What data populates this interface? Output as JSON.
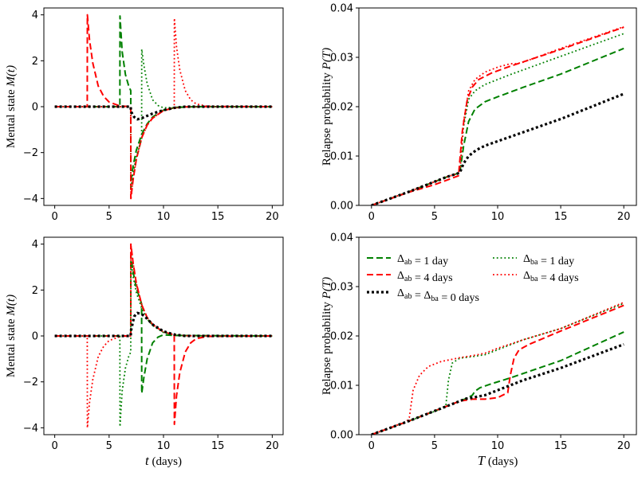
{
  "chart_data": [
    {
      "type": "line",
      "ylabel": "Mental state M(t)",
      "xlabel": "",
      "xlim": [
        -1,
        21
      ],
      "ylim": [
        -4.3,
        4.3
      ],
      "xticks": [
        0,
        5,
        10,
        15,
        20
      ],
      "yticks": [
        -4,
        -2,
        0,
        2,
        4
      ],
      "xtick_labels": [
        "0",
        "5",
        "10",
        "15",
        "20"
      ],
      "ytick_labels": [
        "−4",
        "−2",
        "0",
        "2",
        "4"
      ],
      "series": [
        {
          "color": "#008000",
          "dash": "dashed",
          "x": [
            0,
            5.99,
            6.0,
            6.2,
            6.5,
            6.8,
            6.99,
            7.0,
            7.2,
            7.5,
            8,
            8.5,
            9,
            10,
            11,
            12,
            14,
            20
          ],
          "y": [
            0,
            0,
            3.95,
            2.4,
            1.4,
            0.9,
            0.7,
            -3.3,
            -2.6,
            -1.9,
            -1.2,
            -0.75,
            -0.45,
            -0.15,
            -0.05,
            -0.01,
            0,
            0
          ]
        },
        {
          "color": "#ff0000",
          "dash": "dashed",
          "x": [
            0,
            2.99,
            3.0,
            3.2,
            3.5,
            4,
            4.5,
            5,
            6,
            6.99,
            7.0,
            7.2,
            7.5,
            8,
            8.5,
            9,
            10,
            11,
            12,
            14,
            20
          ],
          "y": [
            0,
            0,
            4.0,
            2.9,
            1.9,
            0.9,
            0.45,
            0.2,
            0.03,
            0,
            -4.0,
            -3.2,
            -2.3,
            -1.35,
            -0.8,
            -0.5,
            -0.17,
            -0.05,
            -0.01,
            0,
            0
          ]
        },
        {
          "color": "#008000",
          "dash": "dotted",
          "x": [
            0,
            6.99,
            7.0,
            7.2,
            7.5,
            7.99,
            8.0,
            8.2,
            8.5,
            9,
            9.5,
            10,
            11,
            12,
            20
          ],
          "y": [
            0,
            0,
            -3.6,
            -2.9,
            -2.2,
            -1.4,
            2.5,
            1.8,
            1.0,
            0.3,
            0.05,
            -0.05,
            -0.03,
            0,
            0
          ]
        },
        {
          "color": "#ff0000",
          "dash": "dotted",
          "x": [
            0,
            6.99,
            7.0,
            7.2,
            7.5,
            8,
            8.5,
            9,
            10,
            10.99,
            11.0,
            11.2,
            11.5,
            12,
            12.5,
            13,
            14,
            20
          ],
          "y": [
            0,
            0,
            -4.0,
            -3.2,
            -2.3,
            -1.35,
            -0.8,
            -0.5,
            -0.17,
            -0.05,
            3.85,
            2.6,
            1.6,
            0.7,
            0.3,
            0.12,
            0.02,
            0
          ]
        },
        {
          "color": "#000000",
          "dash": "bold-dotted",
          "x": [
            0,
            6.99,
            7.0,
            7.3,
            7.6,
            8,
            8.5,
            9,
            10,
            11,
            12,
            20
          ],
          "y": [
            0,
            0,
            -0.2,
            -0.45,
            -0.55,
            -0.5,
            -0.4,
            -0.3,
            -0.15,
            -0.05,
            0,
            0
          ]
        }
      ]
    },
    {
      "type": "line",
      "ylabel": "Relapse probability P(T)",
      "xlabel": "",
      "xlim": [
        -1,
        21
      ],
      "ylim": [
        0,
        0.04
      ],
      "xticks": [
        0,
        5,
        10,
        15,
        20
      ],
      "yticks": [
        0,
        0.01,
        0.02,
        0.03,
        0.04
      ],
      "xtick_labels": [
        "0",
        "5",
        "10",
        "15",
        "20"
      ],
      "ytick_labels": [
        "0.00",
        "0.01",
        "0.02",
        "0.03",
        "0.04"
      ],
      "series": [
        {
          "color": "#008000",
          "dash": "dashed",
          "x": [
            0,
            3,
            6,
            7,
            7.3,
            7.7,
            8.2,
            9,
            10,
            12,
            15,
            20
          ],
          "y": [
            0,
            0.0028,
            0.0058,
            0.0066,
            0.012,
            0.017,
            0.0195,
            0.021,
            0.022,
            0.0239,
            0.0266,
            0.0318
          ]
        },
        {
          "color": "#ff0000",
          "dash": "dashed",
          "x": [
            0,
            3,
            5,
            6.9,
            7.2,
            7.6,
            8.0,
            8.5,
            9.5,
            11,
            15,
            20
          ],
          "y": [
            0,
            0.0027,
            0.0042,
            0.006,
            0.015,
            0.0215,
            0.024,
            0.0255,
            0.0268,
            0.0282,
            0.0316,
            0.0361
          ]
        },
        {
          "color": "#008000",
          "dash": "dotted",
          "x": [
            0,
            3,
            6,
            7,
            7.3,
            7.7,
            8.2,
            9,
            11,
            15,
            20
          ],
          "y": [
            0,
            0.0028,
            0.0058,
            0.0066,
            0.016,
            0.0215,
            0.0232,
            0.0245,
            0.0265,
            0.0302,
            0.0348
          ]
        },
        {
          "color": "#ff0000",
          "dash": "dotted",
          "x": [
            0,
            3,
            6,
            7,
            7.3,
            7.7,
            8.2,
            9,
            10,
            11,
            11.5,
            12,
            15,
            20
          ],
          "y": [
            0,
            0.0028,
            0.0058,
            0.0066,
            0.017,
            0.0232,
            0.0255,
            0.027,
            0.028,
            0.0287,
            0.0287,
            0.029,
            0.0318,
            0.0362
          ]
        },
        {
          "color": "#000000",
          "dash": "bold-dotted",
          "x": [
            0,
            3,
            6,
            7,
            7.3,
            7.7,
            8.3,
            9,
            10,
            12,
            15,
            20
          ],
          "y": [
            0,
            0.0028,
            0.0058,
            0.0066,
            0.0085,
            0.01,
            0.0112,
            0.0121,
            0.013,
            0.0148,
            0.0175,
            0.0226
          ]
        }
      ]
    },
    {
      "type": "line",
      "ylabel": "Mental state M(t)",
      "xlabel": "t (days)",
      "xlim": [
        -1,
        21
      ],
      "ylim": [
        -4.3,
        4.3
      ],
      "xticks": [
        0,
        5,
        10,
        15,
        20
      ],
      "yticks": [
        -4,
        -2,
        0,
        2,
        4
      ],
      "xtick_labels": [
        "0",
        "5",
        "10",
        "15",
        "20"
      ],
      "ytick_labels": [
        "−4",
        "−2",
        "0",
        "2",
        "4"
      ],
      "series": [
        {
          "color": "#008000",
          "dash": "dashed",
          "x": [
            0,
            6.99,
            7.0,
            7.2,
            7.5,
            7.99,
            8.0,
            8.2,
            8.5,
            9,
            9.5,
            10,
            11,
            20
          ],
          "y": [
            0,
            0,
            3.5,
            2.8,
            2.1,
            1.4,
            -2.5,
            -1.8,
            -1.0,
            -0.3,
            -0.05,
            0.05,
            0.02,
            0
          ]
        },
        {
          "color": "#ff0000",
          "dash": "dashed",
          "x": [
            0,
            6.99,
            7.0,
            7.2,
            7.5,
            8,
            8.5,
            9,
            10,
            10.99,
            11.0,
            11.2,
            11.5,
            12,
            12.5,
            13,
            14,
            20
          ],
          "y": [
            0,
            0,
            4.0,
            3.2,
            2.3,
            1.35,
            0.8,
            0.5,
            0.17,
            0.05,
            -3.85,
            -2.6,
            -1.6,
            -0.7,
            -0.3,
            -0.12,
            -0.02,
            0
          ]
        },
        {
          "color": "#008000",
          "dash": "dotted",
          "x": [
            0,
            5.99,
            6.0,
            6.2,
            6.5,
            6.8,
            6.99,
            7.0,
            7.2,
            7.5,
            8,
            8.5,
            9,
            10,
            11,
            12,
            20
          ],
          "y": [
            0,
            0,
            -3.95,
            -2.4,
            -1.4,
            -0.9,
            -0.7,
            3.3,
            2.6,
            1.9,
            1.2,
            0.75,
            0.45,
            0.15,
            0.05,
            0.01,
            0
          ]
        },
        {
          "color": "#ff0000",
          "dash": "dotted",
          "x": [
            0,
            2.99,
            3.0,
            3.2,
            3.5,
            4,
            4.5,
            5,
            6,
            6.99,
            7.0,
            7.2,
            7.5,
            8,
            8.5,
            9,
            10,
            11,
            12,
            14,
            20
          ],
          "y": [
            0,
            0,
            -4.0,
            -2.9,
            -1.9,
            -0.9,
            -0.45,
            -0.2,
            -0.03,
            0,
            4.0,
            3.2,
            2.3,
            1.35,
            0.8,
            0.5,
            0.17,
            0.05,
            0.01,
            0,
            0
          ]
        },
        {
          "color": "#000000",
          "dash": "bold-dotted",
          "x": [
            0,
            6.99,
            7.0,
            7.3,
            7.6,
            8,
            8.5,
            9,
            10,
            11,
            12,
            20
          ],
          "y": [
            0,
            0,
            0.2,
            0.85,
            1.0,
            0.95,
            0.75,
            0.5,
            0.2,
            0.06,
            0,
            0
          ]
        }
      ]
    },
    {
      "type": "line",
      "ylabel": "Relapse probability P(T)",
      "xlabel": "T (days)",
      "xlim": [
        -1,
        21
      ],
      "ylim": [
        0,
        0.04
      ],
      "xticks": [
        0,
        5,
        10,
        15,
        20
      ],
      "yticks": [
        0,
        0.01,
        0.02,
        0.03,
        0.04
      ],
      "xtick_labels": [
        "0",
        "5",
        "10",
        "15",
        "20"
      ],
      "ytick_labels": [
        "0.00",
        "0.01",
        "0.02",
        "0.03",
        "0.04"
      ],
      "legend": {
        "position": "top",
        "entries": [
          {
            "color": "#008000",
            "dash": "dashed",
            "label": "Δab = 1 day"
          },
          {
            "color": "#008000",
            "dash": "dotted",
            "label": "Δba = 1 day"
          },
          {
            "color": "#ff0000",
            "dash": "dashed",
            "label": "Δab = 4 days"
          },
          {
            "color": "#ff0000",
            "dash": "dotted",
            "label": "Δba = 4 days"
          },
          {
            "color": "#000000",
            "dash": "bold-dotted",
            "label": "Δab = Δba = 0 days"
          }
        ]
      },
      "series": [
        {
          "color": "#008000",
          "dash": "dashed",
          "x": [
            0,
            3,
            6,
            7,
            7.5,
            8.0,
            8.2,
            8.6,
            9.5,
            11,
            15,
            20
          ],
          "y": [
            0,
            0.0028,
            0.0058,
            0.0068,
            0.0073,
            0.008,
            0.0088,
            0.0095,
            0.0103,
            0.0115,
            0.015,
            0.0208
          ]
        },
        {
          "color": "#ff0000",
          "dash": "dashed",
          "x": [
            0,
            3,
            6,
            7,
            8,
            9,
            10,
            10.8,
            11.0,
            11.3,
            11.7,
            12.5,
            15,
            20
          ],
          "y": [
            0,
            0.0028,
            0.0058,
            0.0068,
            0.0072,
            0.0072,
            0.0075,
            0.0085,
            0.012,
            0.0155,
            0.0172,
            0.0183,
            0.021,
            0.0262
          ]
        },
        {
          "color": "#008000",
          "dash": "dotted",
          "x": [
            0,
            3,
            5.5,
            5.9,
            6.1,
            6.4,
            7,
            8,
            9,
            10,
            12,
            15,
            20
          ],
          "y": [
            0,
            0.0028,
            0.0052,
            0.006,
            0.011,
            0.0145,
            0.0155,
            0.0158,
            0.0162,
            0.0172,
            0.0192,
            0.0215,
            0.0266
          ]
        },
        {
          "color": "#ff0000",
          "dash": "dotted",
          "x": [
            0,
            2.8,
            3.0,
            3.3,
            3.8,
            4.5,
            5.5,
            7,
            8,
            9,
            10,
            12,
            15,
            20
          ],
          "y": [
            0,
            0.0027,
            0.0035,
            0.009,
            0.012,
            0.0138,
            0.0148,
            0.0156,
            0.016,
            0.0165,
            0.0175,
            0.0192,
            0.0215,
            0.0268
          ]
        },
        {
          "color": "#000000",
          "dash": "bold-dotted",
          "x": [
            0,
            3,
            6,
            7,
            7.5,
            8,
            9,
            10,
            12,
            15,
            20
          ],
          "y": [
            0,
            0.0028,
            0.0058,
            0.0068,
            0.0073,
            0.0075,
            0.008,
            0.009,
            0.011,
            0.0135,
            0.0183
          ]
        }
      ]
    }
  ]
}
